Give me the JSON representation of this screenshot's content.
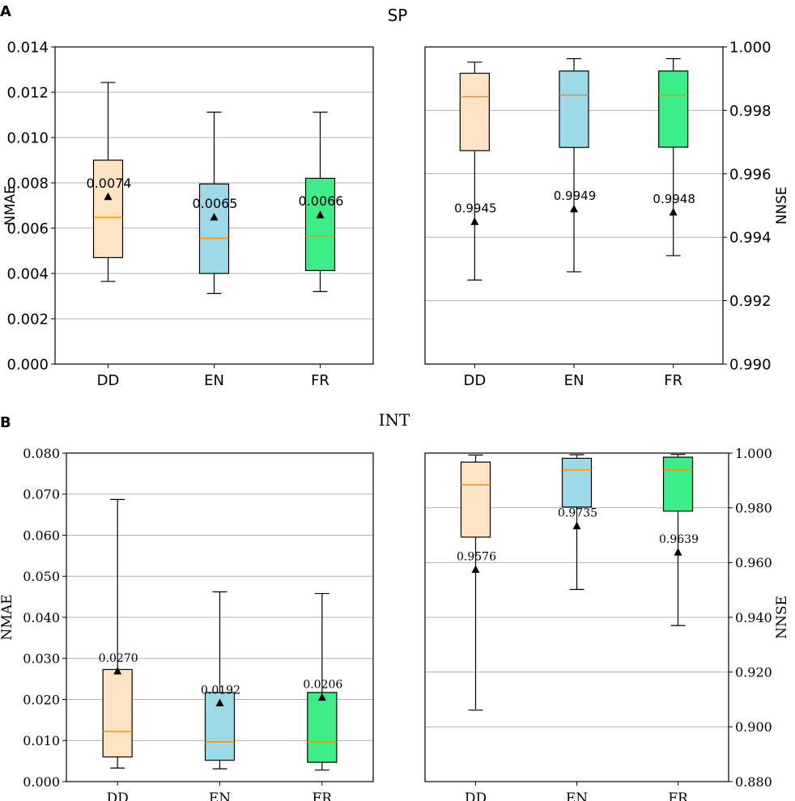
{
  "panels": [
    {
      "letter": "A",
      "title": "SP"
    },
    {
      "letter": "B",
      "title": "INT"
    }
  ],
  "colors": {
    "DD": "#ffe4c4",
    "EN": "#9dd9e6",
    "FR": "#3ded87",
    "median": "#ff8c00",
    "grid": "#b0b0b0"
  },
  "chart_data": [
    {
      "type": "box",
      "panel": "A",
      "title": "SP",
      "ylabel": "NMAE",
      "yaxis": "left",
      "ylim": [
        0,
        0.014
      ],
      "yticks": [
        0,
        0.002,
        0.004,
        0.006,
        0.008,
        0.01,
        0.012,
        0.014
      ],
      "ytick_labels": [
        "0.000",
        "0.002",
        "0.004",
        "0.006",
        "0.008",
        "0.010",
        "0.012",
        "0.014"
      ],
      "categories": [
        "DD",
        "EN",
        "FR"
      ],
      "boxes": [
        {
          "name": "DD",
          "whislo": 0.00365,
          "q1": 0.0047,
          "med": 0.00648,
          "q3": 0.009,
          "whishi": 0.01243,
          "mean": 0.0074,
          "label": "0.0074"
        },
        {
          "name": "EN",
          "whislo": 0.00312,
          "q1": 0.004,
          "med": 0.00555,
          "q3": 0.00795,
          "whishi": 0.01112,
          "mean": 0.0065,
          "label": "0.0065"
        },
        {
          "name": "FR",
          "whislo": 0.0032,
          "q1": 0.00413,
          "med": 0.00565,
          "q3": 0.0082,
          "whishi": 0.01112,
          "mean": 0.0066,
          "label": "0.0066"
        }
      ]
    },
    {
      "type": "box",
      "panel": "A",
      "ylabel": "NNSE",
      "yaxis": "right",
      "ylim": [
        0.99,
        1.0
      ],
      "yticks": [
        0.99,
        0.992,
        0.994,
        0.996,
        0.998,
        1.0
      ],
      "ytick_labels": [
        "0.990",
        "0.992",
        "0.994",
        "0.996",
        "0.998",
        "1.000"
      ],
      "categories": [
        "DD",
        "EN",
        "FR"
      ],
      "boxes": [
        {
          "name": "DD",
          "whislo": 0.99265,
          "q1": 0.99673,
          "med": 0.99843,
          "q3": 0.99917,
          "whishi": 0.99952,
          "mean": 0.9945,
          "label": "0.9945"
        },
        {
          "name": "EN",
          "whislo": 0.99291,
          "q1": 0.99683,
          "med": 0.99848,
          "q3": 0.99924,
          "whishi": 0.99963,
          "mean": 0.9949,
          "label": "0.9949"
        },
        {
          "name": "FR",
          "whislo": 0.99342,
          "q1": 0.99684,
          "med": 0.99848,
          "q3": 0.99924,
          "whishi": 0.99963,
          "mean": 0.9948,
          "label": "0.9948"
        }
      ]
    },
    {
      "type": "box",
      "panel": "B",
      "title": "INT",
      "ylabel": "NMAE",
      "yaxis": "left",
      "ylim": [
        0,
        0.08
      ],
      "yticks": [
        0,
        0.01,
        0.02,
        0.03,
        0.04,
        0.05,
        0.06,
        0.07,
        0.08
      ],
      "ytick_labels": [
        "0.000",
        "0.010",
        "0.020",
        "0.030",
        "0.040",
        "0.050",
        "0.060",
        "0.070",
        "0.080"
      ],
      "categories": [
        "DD",
        "EN",
        "FR"
      ],
      "boxes": [
        {
          "name": "DD",
          "whislo": 0.0033,
          "q1": 0.006,
          "med": 0.0122,
          "q3": 0.0273,
          "whishi": 0.0687,
          "mean": 0.027,
          "label": "0.0270"
        },
        {
          "name": "EN",
          "whislo": 0.0031,
          "q1": 0.0052,
          "med": 0.0097,
          "q3": 0.0217,
          "whishi": 0.0462,
          "mean": 0.0192,
          "label": "0.0192"
        },
        {
          "name": "FR",
          "whislo": 0.0028,
          "q1": 0.0047,
          "med": 0.0097,
          "q3": 0.0217,
          "whishi": 0.0458,
          "mean": 0.0206,
          "label": "0.0206"
        }
      ]
    },
    {
      "type": "box",
      "panel": "B",
      "ylabel": "NNSE",
      "yaxis": "right",
      "ylim": [
        0.88,
        1.0
      ],
      "yticks": [
        0.88,
        0.9,
        0.92,
        0.94,
        0.96,
        0.98,
        1.0
      ],
      "ytick_labels": [
        "0.880",
        "0.900",
        "0.920",
        "0.940",
        "0.960",
        "0.980",
        "1.000"
      ],
      "categories": [
        "DD",
        "EN",
        "FR"
      ],
      "boxes": [
        {
          "name": "DD",
          "whislo": 0.9061,
          "q1": 0.9693,
          "med": 0.9884,
          "q3": 0.9967,
          "whishi": 0.9993,
          "mean": 0.9576,
          "label": "0.9576"
        },
        {
          "name": "EN",
          "whislo": 0.9502,
          "q1": 0.9803,
          "med": 0.9939,
          "q3": 0.9981,
          "whishi": 0.9994,
          "mean": 0.9735,
          "label": "0.9735"
        },
        {
          "name": "FR",
          "whislo": 0.937,
          "q1": 0.9788,
          "med": 0.9939,
          "q3": 0.9985,
          "whishi": 0.9995,
          "mean": 0.9639,
          "label": "0.9639"
        }
      ]
    }
  ]
}
